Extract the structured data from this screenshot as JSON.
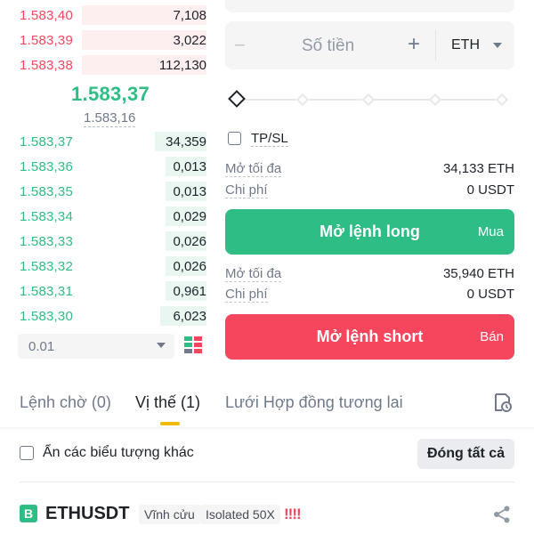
{
  "order_book": {
    "asks": [
      {
        "price": "1.583,40",
        "qty": "7,108",
        "depth": 0.0
      },
      {
        "price": "1.583,39",
        "qty": "3,022",
        "depth": 0.0
      },
      {
        "price": "1.583,38",
        "qty": "112,130",
        "depth": 0.0
      }
    ],
    "last_price": "1.583,37",
    "mark_price": "1.583,16",
    "bids": [
      {
        "price": "1.583,37",
        "qty": "34,359",
        "depth": 0.0
      },
      {
        "price": "1.583,36",
        "qty": "0,013",
        "depth": 0.0
      },
      {
        "price": "1.583,35",
        "qty": "0,013",
        "depth": 0.0
      },
      {
        "price": "1.583,34",
        "qty": "0,029",
        "depth": 0.0
      },
      {
        "price": "1.583,33",
        "qty": "0,026",
        "depth": 0.0
      },
      {
        "price": "1.583,32",
        "qty": "0,026",
        "depth": 0.0
      },
      {
        "price": "1.583,31",
        "qty": "0,961",
        "depth": 0.0
      },
      {
        "price": "1.583,30",
        "qty": "6,023",
        "depth": 0.0
      }
    ],
    "precision": "0.01",
    "layout_icon": "orderbook-layout-icon"
  },
  "trade_panel": {
    "amount_placeholder": "Số tiền",
    "minus_label": "−",
    "plus_label": "+",
    "unit": "ETH",
    "slider_level": 0,
    "tpsl_label": "TP/SL",
    "long": {
      "max_label": "Mở tối đa",
      "max_value": "34,133 ETH",
      "cost_label": "Chi phí",
      "cost_value": "0 USDT",
      "button_label": "Mở lệnh long",
      "side_label": "Mua"
    },
    "short": {
      "max_label": "Mở tối đa",
      "max_value": "35,940 ETH",
      "cost_label": "Chi phí",
      "cost_value": "0 USDT",
      "button_label": "Mở lệnh short",
      "side_label": "Bán"
    }
  },
  "tabs": [
    {
      "label": "Lệnh chờ (0)",
      "active": false
    },
    {
      "label": "Vị thế (1)",
      "active": true
    },
    {
      "label": "Lưới Hợp đồng tương lai",
      "active": false
    }
  ],
  "filters": {
    "hide_others_label": "Ẩn các biểu tượng khác",
    "close_all_label": "Đóng tất cả"
  },
  "position": {
    "badge": "B",
    "symbol": "ETHUSDT",
    "type_tag": "Vĩnh cửu",
    "margin_tag": "Isolated 50X",
    "warning": "!!!!"
  },
  "colors": {
    "buy": "#2ebd85",
    "sell": "#f6465d",
    "accent": "#f0b90b"
  }
}
